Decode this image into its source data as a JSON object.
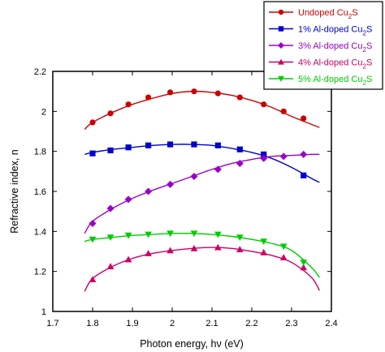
{
  "chart_data": {
    "type": "line",
    "xlabel": "Photon energy, hν (eV)",
    "ylabel": "Refractive index, n",
    "xlim": [
      1.7,
      2.4
    ],
    "ylim": [
      1.0,
      2.2
    ],
    "xticks": [
      "1.7",
      "1.8",
      "1.9",
      "2",
      "2.1",
      "2.2",
      "2.3",
      "2.4"
    ],
    "yticks": [
      "1",
      "1.2",
      "1.4",
      "1.6",
      "1.8",
      "2",
      "2.2"
    ],
    "legend_position": "top-right, outside plot",
    "series": [
      {
        "name": "Undoped Cu₂S",
        "legend_text": "Undoped Cu",
        "legend_sub": "2",
        "legend_suffix": "S",
        "color": "#cc0000",
        "marker": "circle",
        "curve_x": [
          1.78,
          1.8,
          1.85,
          1.9,
          1.95,
          2.0,
          2.05,
          2.1,
          2.15,
          2.2,
          2.25,
          2.3,
          2.35,
          2.37
        ],
        "curve_y": [
          1.91,
          1.945,
          1.995,
          2.035,
          2.065,
          2.09,
          2.1,
          2.095,
          2.08,
          2.055,
          2.02,
          1.975,
          1.935,
          1.92
        ],
        "marker_x": [
          1.8,
          1.845,
          1.89,
          1.94,
          1.995,
          2.055,
          2.115,
          2.17,
          2.23,
          2.28,
          2.33
        ],
        "marker_y": [
          1.945,
          1.99,
          2.035,
          2.07,
          2.095,
          2.1,
          2.09,
          2.07,
          2.035,
          2.0,
          1.965
        ]
      },
      {
        "name": "1% Al-doped Cu₂S",
        "legend_text": "1% Al-doped Cu",
        "legend_sub": "2",
        "legend_suffix": "S",
        "color": "#0000cc",
        "marker": "square",
        "curve_x": [
          1.78,
          1.8,
          1.85,
          1.9,
          1.95,
          2.0,
          2.05,
          2.1,
          2.15,
          2.2,
          2.25,
          2.3,
          2.35,
          2.37
        ],
        "curve_y": [
          1.785,
          1.795,
          1.81,
          1.82,
          1.83,
          1.835,
          1.835,
          1.83,
          1.815,
          1.795,
          1.765,
          1.72,
          1.665,
          1.645
        ],
        "marker_x": [
          1.8,
          1.845,
          1.89,
          1.94,
          1.995,
          2.055,
          2.115,
          2.17,
          2.23,
          2.33
        ],
        "marker_y": [
          1.79,
          1.805,
          1.82,
          1.83,
          1.835,
          1.835,
          1.83,
          1.81,
          1.785,
          1.68
        ]
      },
      {
        "name": "3% Al-doped Cu₂S",
        "legend_text": "3% Al-doped Cu",
        "legend_sub": "2",
        "legend_suffix": "S",
        "color": "#9900cc",
        "marker": "diamond",
        "curve_x": [
          1.78,
          1.8,
          1.85,
          1.9,
          1.95,
          2.0,
          2.05,
          2.1,
          2.15,
          2.2,
          2.25,
          2.3,
          2.35,
          2.37
        ],
        "curve_y": [
          1.39,
          1.45,
          1.515,
          1.565,
          1.605,
          1.64,
          1.675,
          1.71,
          1.74,
          1.76,
          1.775,
          1.78,
          1.785,
          1.785
        ],
        "marker_x": [
          1.8,
          1.845,
          1.89,
          1.94,
          1.995,
          2.055,
          2.115,
          2.17,
          2.23,
          2.28,
          2.33
        ],
        "marker_y": [
          1.44,
          1.515,
          1.56,
          1.6,
          1.635,
          1.675,
          1.71,
          1.74,
          1.765,
          1.775,
          1.785
        ]
      },
      {
        "name": "4% Al-doped Cu₂S",
        "legend_text": "4% Al-doped Cu",
        "legend_sub": "2",
        "legend_suffix": "S",
        "color": "#cc0066",
        "marker": "triangle",
        "curve_x": [
          1.78,
          1.8,
          1.85,
          1.9,
          1.95,
          2.0,
          2.05,
          2.1,
          2.15,
          2.2,
          2.25,
          2.3,
          2.35,
          2.37
        ],
        "curve_y": [
          1.1,
          1.165,
          1.225,
          1.265,
          1.29,
          1.305,
          1.315,
          1.32,
          1.315,
          1.3,
          1.28,
          1.245,
          1.17,
          1.105
        ],
        "marker_x": [
          1.8,
          1.845,
          1.89,
          1.94,
          1.995,
          2.055,
          2.115,
          2.17,
          2.23,
          2.28,
          2.33
        ],
        "marker_y": [
          1.16,
          1.225,
          1.26,
          1.29,
          1.305,
          1.315,
          1.32,
          1.31,
          1.295,
          1.27,
          1.22
        ]
      },
      {
        "name": "5% Al-doped Cu₂S",
        "legend_text": "5% Al-doped Cu",
        "legend_sub": "2",
        "legend_suffix": "S",
        "color": "#00cc00",
        "marker": "triangle-down",
        "curve_x": [
          1.78,
          1.8,
          1.85,
          1.9,
          1.95,
          2.0,
          2.05,
          2.1,
          2.15,
          2.2,
          2.25,
          2.3,
          2.35,
          2.37
        ],
        "curve_y": [
          1.35,
          1.36,
          1.37,
          1.38,
          1.385,
          1.39,
          1.39,
          1.385,
          1.375,
          1.36,
          1.34,
          1.305,
          1.22,
          1.17
        ],
        "marker_x": [
          1.8,
          1.845,
          1.89,
          1.94,
          1.995,
          2.055,
          2.115,
          2.17,
          2.23,
          2.28,
          2.33
        ],
        "marker_y": [
          1.36,
          1.37,
          1.38,
          1.385,
          1.39,
          1.39,
          1.385,
          1.37,
          1.35,
          1.325,
          1.245
        ]
      }
    ]
  }
}
